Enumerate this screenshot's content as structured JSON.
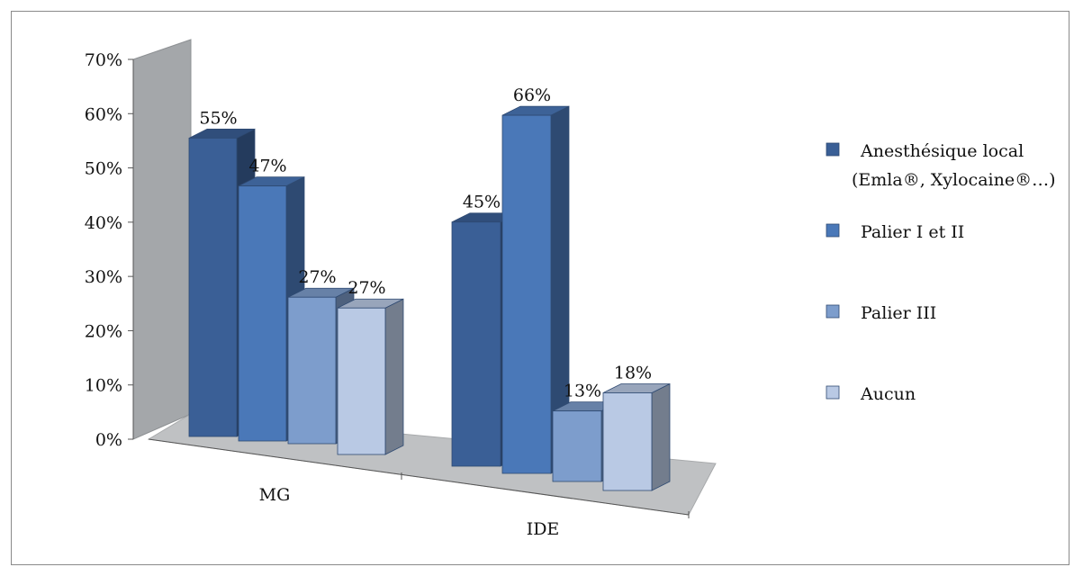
{
  "chart_data": {
    "type": "bar",
    "categories": [
      "MG",
      "IDE"
    ],
    "series": [
      {
        "name": "Anesthésique local (Emla®, Xylocaine®…)",
        "values": [
          0.55,
          0.45
        ],
        "labels": [
          "55%",
          "45%"
        ]
      },
      {
        "name": "Palier I et II",
        "values": [
          0.47,
          0.66
        ],
        "labels": [
          "47%",
          "66%"
        ]
      },
      {
        "name": "Palier III",
        "values": [
          0.27,
          0.13
        ],
        "labels": [
          "27%",
          "13%"
        ]
      },
      {
        "name": "Aucun",
        "values": [
          0.27,
          0.18
        ],
        "labels": [
          "27%",
          "18%"
        ]
      }
    ],
    "legend": {
      "items": [
        {
          "line1": "Anesthésique local",
          "line2": "(Emla®, Xylocaine®…)"
        },
        {
          "line1": "Palier I et II",
          "line2": ""
        },
        {
          "line1": "Palier III",
          "line2": ""
        },
        {
          "line1": "Aucun",
          "line2": ""
        }
      ],
      "position": "right"
    },
    "yticks": [
      "0%",
      "10%",
      "20%",
      "30%",
      "40%",
      "50%",
      "60%",
      "70%"
    ],
    "ylim": [
      0,
      0.7
    ],
    "colors": {
      "series": [
        "#3a5f96",
        "#4a78b8",
        "#7d9dcc",
        "#b9c9e4"
      ],
      "back_wall": "#a4a7aa",
      "floor": "#bfc1c3"
    },
    "view": "3d-clustered"
  }
}
